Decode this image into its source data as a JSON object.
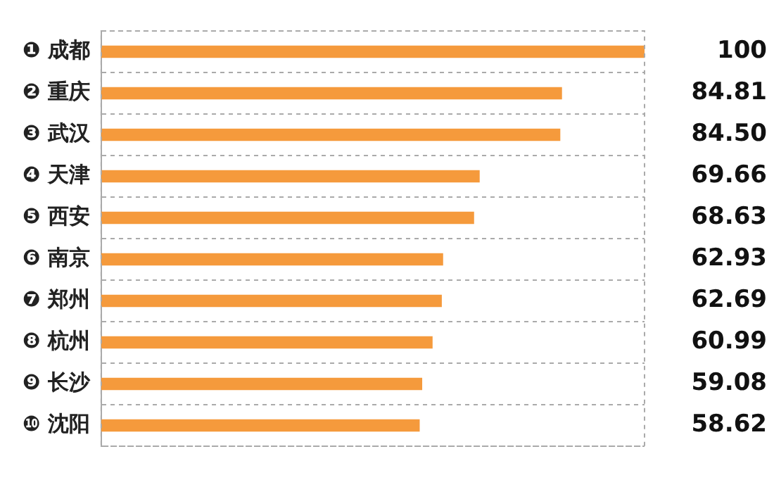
{
  "chart_data": {
    "type": "bar",
    "orientation": "horizontal",
    "categories": [
      "❶ 成都",
      "❷ 重庆",
      "❸ 武汉",
      "❹ 天津",
      "❺ 西安",
      "❻ 南京",
      "❼ 郑州",
      "❽ 杭州",
      "❾ 长沙",
      "❿ 沈阳"
    ],
    "values": [
      100,
      84.81,
      84.5,
      69.66,
      68.63,
      62.93,
      62.69,
      60.99,
      59.08,
      58.62
    ],
    "value_labels": [
      "100",
      "84.81",
      "84.50",
      "69.66",
      "68.63",
      "62.93",
      "62.69",
      "60.99",
      "59.08",
      "58.62"
    ],
    "color": "#f59a3c",
    "grid": "y",
    "legend": false
  }
}
